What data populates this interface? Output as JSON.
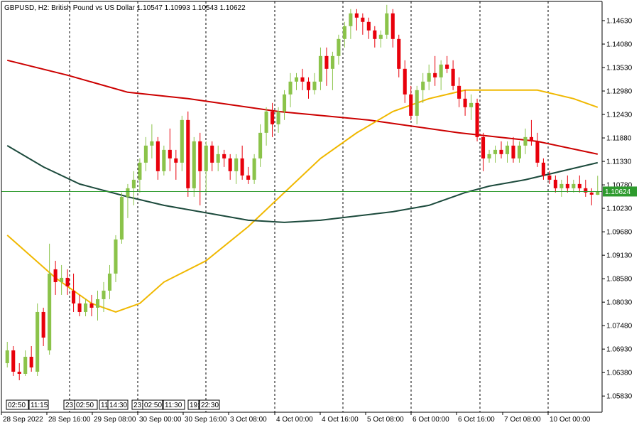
{
  "header": {
    "symbol_line": "GBPUSD, H2:  British Pound vs US Dollar  1.10547 1.10993 1.10543 1.10622"
  },
  "colors": {
    "bull": "#8bc34a",
    "bear": "#e8000b",
    "ma_red": "#cc0000",
    "ma_gold": "#f0b800",
    "ma_dark": "#1c4a3c",
    "price_line": "#2e9b2e",
    "grid": "#000000"
  },
  "chart_data": {
    "type": "candlestick",
    "y_ticks": [
      "1.14630",
      "1.14080",
      "1.13530",
      "1.12980",
      "1.12430",
      "1.11880",
      "1.11330",
      "1.10780",
      "1.10230",
      "1.09680",
      "1.09130",
      "1.08580",
      "1.08030",
      "1.07480",
      "1.06930",
      "1.06380",
      "1.05830"
    ],
    "ylim": [
      1.0545,
      1.1508
    ],
    "current_price": "1.10624",
    "x_labels": [
      "28 Sep 2022",
      "28 Sep 16:00",
      "29 Sep 08:00",
      "30 Sep 00:00",
      "30 Sep 16:00",
      "3 Oct 08:00",
      "4 Oct 00:00",
      "4 Oct 16:00",
      "5 Oct 08:00",
      "6 Oct 00:00",
      "6 Oct 16:00",
      "7 Oct 08:00",
      "10 Oct 00:00"
    ],
    "time_captions": [
      "02:50",
      "11:15",
      "23:",
      "02:50",
      "11:",
      "14:30",
      "23:",
      "02:50",
      "11:30",
      "19:",
      "22:30"
    ],
    "candles": [
      [
        1.066,
        1.071,
        1.065,
        1.069
      ],
      [
        1.069,
        1.07,
        1.063,
        1.064
      ],
      [
        1.064,
        1.066,
        1.062,
        1.0635
      ],
      [
        1.0635,
        1.069,
        1.063,
        1.0675
      ],
      [
        1.0675,
        1.07,
        1.064,
        1.065
      ],
      [
        1.064,
        1.08,
        1.063,
        1.078
      ],
      [
        1.078,
        1.079,
        1.07,
        1.072
      ],
      [
        1.069,
        1.094,
        1.068,
        1.087
      ],
      [
        1.088,
        1.09,
        1.082,
        1.085
      ],
      [
        1.085,
        1.089,
        1.082,
        1.086
      ],
      [
        1.086,
        1.088,
        1.082,
        1.084
      ],
      [
        1.083,
        1.087,
        1.078,
        1.08
      ],
      [
        1.08,
        1.082,
        1.077,
        1.078
      ],
      [
        1.078,
        1.081,
        1.077,
        1.08
      ],
      [
        1.08,
        1.082,
        1.077,
        1.079
      ],
      [
        1.079,
        1.083,
        1.076,
        1.081
      ],
      [
        1.081,
        1.085,
        1.078,
        1.083
      ],
      [
        1.083,
        1.089,
        1.081,
        1.087
      ],
      [
        1.087,
        1.096,
        1.085,
        1.095
      ],
      [
        1.095,
        1.106,
        1.094,
        1.105
      ],
      [
        1.105,
        1.108,
        1.1,
        1.107
      ],
      [
        1.107,
        1.111,
        1.103,
        1.109
      ],
      [
        1.109,
        1.114,
        1.106,
        1.113
      ],
      [
        1.113,
        1.119,
        1.111,
        1.117
      ],
      [
        1.117,
        1.122,
        1.114,
        1.118
      ],
      [
        1.118,
        1.119,
        1.109,
        1.111
      ],
      [
        1.111,
        1.117,
        1.11,
        1.116
      ],
      [
        1.116,
        1.121,
        1.111,
        1.114
      ],
      [
        1.114,
        1.116,
        1.109,
        1.113
      ],
      [
        1.113,
        1.124,
        1.111,
        1.123
      ],
      [
        1.123,
        1.125,
        1.105,
        1.107
      ],
      [
        1.107,
        1.119,
        1.105,
        1.118
      ],
      [
        1.118,
        1.12,
        1.103,
        1.111
      ],
      [
        1.111,
        1.118,
        1.106,
        1.117
      ],
      [
        1.117,
        1.118,
        1.111,
        1.113
      ],
      [
        1.113,
        1.117,
        1.111,
        1.115
      ],
      [
        1.115,
        1.116,
        1.112,
        1.114
      ],
      [
        1.114,
        1.115,
        1.109,
        1.111
      ],
      [
        1.111,
        1.115,
        1.108,
        1.114
      ],
      [
        1.114,
        1.117,
        1.109,
        1.11
      ],
      [
        1.11,
        1.112,
        1.108,
        1.109
      ],
      [
        1.109,
        1.115,
        1.108,
        1.114
      ],
      [
        1.114,
        1.122,
        1.112,
        1.12
      ],
      [
        1.12,
        1.126,
        1.117,
        1.125
      ],
      [
        1.125,
        1.127,
        1.119,
        1.122
      ],
      [
        1.122,
        1.126,
        1.12,
        1.125
      ],
      [
        1.125,
        1.13,
        1.123,
        1.129
      ],
      [
        1.129,
        1.134,
        1.126,
        1.132
      ],
      [
        1.132,
        1.134,
        1.13,
        1.133
      ],
      [
        1.133,
        1.135,
        1.13,
        1.132
      ],
      [
        1.132,
        1.133,
        1.128,
        1.13
      ],
      [
        1.13,
        1.134,
        1.129,
        1.132
      ],
      [
        1.132,
        1.14,
        1.13,
        1.138
      ],
      [
        1.138,
        1.14,
        1.131,
        1.135
      ],
      [
        1.135,
        1.139,
        1.13,
        1.138
      ],
      [
        1.138,
        1.143,
        1.136,
        1.142
      ],
      [
        1.142,
        1.146,
        1.14,
        1.145
      ],
      [
        1.145,
        1.149,
        1.142,
        1.148
      ],
      [
        1.148,
        1.149,
        1.144,
        1.147
      ],
      [
        1.147,
        1.148,
        1.143,
        1.146
      ],
      [
        1.146,
        1.147,
        1.142,
        1.144
      ],
      [
        1.144,
        1.145,
        1.14,
        1.142
      ],
      [
        1.142,
        1.144,
        1.14,
        1.143
      ],
      [
        1.143,
        1.15,
        1.142,
        1.148
      ],
      [
        1.148,
        1.149,
        1.14,
        1.142
      ],
      [
        1.142,
        1.143,
        1.133,
        1.135
      ],
      [
        1.135,
        1.137,
        1.127,
        1.129
      ],
      [
        1.129,
        1.131,
        1.123,
        1.124
      ],
      [
        1.124,
        1.131,
        1.122,
        1.13
      ],
      [
        1.13,
        1.134,
        1.127,
        1.132
      ],
      [
        1.132,
        1.136,
        1.13,
        1.134
      ],
      [
        1.134,
        1.138,
        1.131,
        1.133
      ],
      [
        1.133,
        1.137,
        1.13,
        1.136
      ],
      [
        1.136,
        1.138,
        1.134,
        1.135
      ],
      [
        1.135,
        1.137,
        1.13,
        1.131
      ],
      [
        1.131,
        1.133,
        1.126,
        1.128
      ],
      [
        1.128,
        1.13,
        1.124,
        1.126
      ],
      [
        1.126,
        1.129,
        1.123,
        1.127
      ],
      [
        1.127,
        1.128,
        1.118,
        1.119
      ],
      [
        1.119,
        1.12,
        1.111,
        1.114
      ],
      [
        1.114,
        1.116,
        1.113,
        1.115
      ],
      [
        1.115,
        1.117,
        1.113,
        1.116
      ],
      [
        1.116,
        1.118,
        1.114,
        1.115
      ],
      [
        1.115,
        1.118,
        1.113,
        1.117
      ],
      [
        1.117,
        1.119,
        1.113,
        1.114
      ],
      [
        1.114,
        1.118,
        1.113,
        1.117
      ],
      [
        1.117,
        1.121,
        1.115,
        1.119
      ],
      [
        1.119,
        1.123,
        1.117,
        1.118
      ],
      [
        1.118,
        1.12,
        1.112,
        1.113
      ],
      [
        1.113,
        1.114,
        1.109,
        1.11
      ],
      [
        1.11,
        1.111,
        1.108,
        1.109
      ],
      [
        1.109,
        1.11,
        1.106,
        1.107
      ],
      [
        1.107,
        1.109,
        1.105,
        1.108
      ],
      [
        1.108,
        1.11,
        1.106,
        1.107
      ],
      [
        1.107,
        1.109,
        1.106,
        1.108
      ],
      [
        1.108,
        1.11,
        1.106,
        1.107
      ],
      [
        1.107,
        1.109,
        1.105,
        1.106
      ],
      [
        1.106,
        1.107,
        1.103,
        1.1055
      ],
      [
        1.10547,
        1.10993,
        1.10543,
        1.10622
      ]
    ],
    "moving_averages": [
      {
        "color_key": "ma_red",
        "points": [
          [
            0,
            1.137
          ],
          [
            10,
            1.1335
          ],
          [
            20,
            1.1295
          ],
          [
            30,
            1.128
          ],
          [
            45,
            1.125
          ],
          [
            60,
            1.123
          ],
          [
            75,
            1.12
          ],
          [
            88,
            1.118
          ],
          [
            98,
            1.115
          ]
        ]
      },
      {
        "color_key": "ma_gold",
        "points": [
          [
            0,
            1.096
          ],
          [
            8,
            1.086
          ],
          [
            14,
            1.08
          ],
          [
            18,
            1.078
          ],
          [
            22,
            1.08
          ],
          [
            26,
            1.085
          ],
          [
            33,
            1.09
          ],
          [
            40,
            1.098
          ],
          [
            46,
            1.106
          ],
          [
            52,
            1.114
          ],
          [
            58,
            1.12
          ],
          [
            64,
            1.125
          ],
          [
            70,
            1.128
          ],
          [
            76,
            1.13
          ],
          [
            82,
            1.13
          ],
          [
            88,
            1.13
          ],
          [
            94,
            1.128
          ],
          [
            98,
            1.126
          ]
        ]
      },
      {
        "color_key": "ma_dark",
        "points": [
          [
            0,
            1.117
          ],
          [
            6,
            1.112
          ],
          [
            12,
            1.108
          ],
          [
            20,
            1.105
          ],
          [
            26,
            1.103
          ],
          [
            34,
            1.101
          ],
          [
            40,
            1.0995
          ],
          [
            46,
            1.099
          ],
          [
            52,
            1.0995
          ],
          [
            58,
            1.1005
          ],
          [
            64,
            1.1015
          ],
          [
            70,
            1.103
          ],
          [
            76,
            1.106
          ],
          [
            80,
            1.1075
          ],
          [
            86,
            1.109
          ],
          [
            92,
            1.111
          ],
          [
            98,
            1.113
          ]
        ]
      }
    ]
  }
}
